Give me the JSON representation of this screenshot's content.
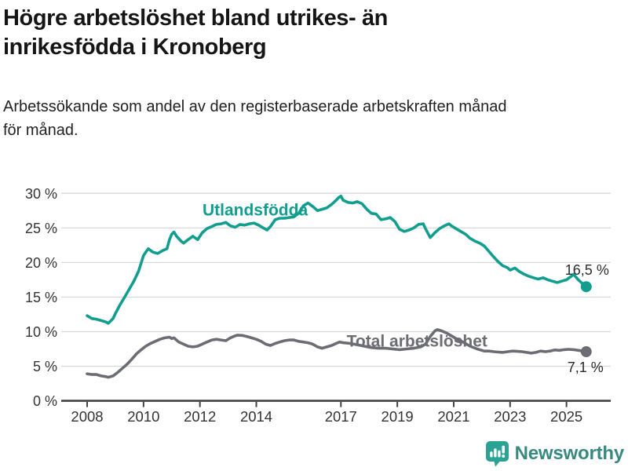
{
  "header": {
    "title": "Högre arbetslöshet bland utrikes- än\ninrikesfödda i Kronoberg",
    "subtitle": "Arbetssökande som andel av den registerbaserade arbetskraften månad\nför månad."
  },
  "footer": {
    "brand": "Newsworthy"
  },
  "colors": {
    "background": "#ffffff",
    "grid": "#d9d9d9",
    "axis": "#424242",
    "tick_text": "#333333",
    "annotation_text": "#2b2b2b",
    "series_teal": "#119e8f",
    "series_gray": "#6c6c74",
    "brand_teal": "#2ba294",
    "brand_text": "#398981"
  },
  "chart_data": {
    "type": "line",
    "title": "Högre arbetslöshet bland utrikes- än inrikesfödda i Kronoberg",
    "subtitle": "Arbetssökande som andel av den registerbaserade arbetskraften månad för månad.",
    "xlabel": "",
    "ylabel": "",
    "grid": true,
    "x_axis": {
      "unit": "year",
      "ticks": [
        {
          "value": 2008,
          "label": "2008"
        },
        {
          "value": 2010,
          "label": "2010"
        },
        {
          "value": 2012,
          "label": "2012"
        },
        {
          "value": 2014,
          "label": "2014"
        },
        {
          "value": 2017,
          "label": "2017"
        },
        {
          "value": 2019,
          "label": "2019"
        },
        {
          "value": 2021,
          "label": "2021"
        },
        {
          "value": 2023,
          "label": "2023"
        },
        {
          "value": 2025,
          "label": "2025"
        }
      ]
    },
    "y_axis": {
      "unit": "%",
      "ylim": [
        0,
        30
      ],
      "ticks": [
        {
          "value": 0,
          "label": "0 %"
        },
        {
          "value": 5,
          "label": "5 %"
        },
        {
          "value": 10,
          "label": "10 %"
        },
        {
          "value": 15,
          "label": "15 %"
        },
        {
          "value": 20,
          "label": "20 %"
        },
        {
          "value": 25,
          "label": "25 %"
        },
        {
          "value": 30,
          "label": "30 %"
        }
      ]
    },
    "series": [
      {
        "name": "Utlandsfödda",
        "color": "#119e8f",
        "label_anchor": {
          "t": 2013.96,
          "v": 27.6
        },
        "end_label": "16,5 %",
        "end_value": 16.5,
        "points": [
          [
            2008.0,
            12.3
          ],
          [
            2008.17,
            11.9
          ],
          [
            2008.33,
            11.8
          ],
          [
            2008.5,
            11.6
          ],
          [
            2008.67,
            11.4
          ],
          [
            2008.75,
            11.2
          ],
          [
            2008.92,
            11.9
          ],
          [
            2009.0,
            12.6
          ],
          [
            2009.17,
            13.9
          ],
          [
            2009.33,
            15.0
          ],
          [
            2009.5,
            16.2
          ],
          [
            2009.67,
            17.4
          ],
          [
            2009.83,
            18.8
          ],
          [
            2010.0,
            21.0
          ],
          [
            2010.08,
            21.5
          ],
          [
            2010.17,
            22.0
          ],
          [
            2010.33,
            21.5
          ],
          [
            2010.5,
            21.3
          ],
          [
            2010.67,
            21.7
          ],
          [
            2010.83,
            22.0
          ],
          [
            2010.92,
            23.3
          ],
          [
            2011.0,
            24.1
          ],
          [
            2011.08,
            24.4
          ],
          [
            2011.17,
            23.8
          ],
          [
            2011.33,
            23.1
          ],
          [
            2011.42,
            22.8
          ],
          [
            2011.58,
            23.3
          ],
          [
            2011.75,
            23.8
          ],
          [
            2011.92,
            23.3
          ],
          [
            2012.08,
            24.3
          ],
          [
            2012.25,
            24.9
          ],
          [
            2012.42,
            25.2
          ],
          [
            2012.58,
            25.5
          ],
          [
            2012.75,
            25.6
          ],
          [
            2012.92,
            25.8
          ],
          [
            2013.08,
            25.3
          ],
          [
            2013.25,
            25.1
          ],
          [
            2013.42,
            25.5
          ],
          [
            2013.58,
            25.4
          ],
          [
            2013.75,
            25.6
          ],
          [
            2013.92,
            25.7
          ],
          [
            2014.08,
            25.4
          ],
          [
            2014.25,
            25.0
          ],
          [
            2014.38,
            24.7
          ],
          [
            2014.5,
            25.2
          ],
          [
            2014.67,
            26.2
          ],
          [
            2014.83,
            26.4
          ],
          [
            2015.0,
            26.4
          ],
          [
            2015.17,
            26.5
          ],
          [
            2015.33,
            26.6
          ],
          [
            2015.5,
            27.1
          ],
          [
            2015.67,
            28.2
          ],
          [
            2015.83,
            28.6
          ],
          [
            2016.0,
            28.1
          ],
          [
            2016.17,
            27.5
          ],
          [
            2016.33,
            27.7
          ],
          [
            2016.5,
            27.9
          ],
          [
            2016.67,
            28.4
          ],
          [
            2016.83,
            29.0
          ],
          [
            2016.92,
            29.4
          ],
          [
            2017.0,
            29.6
          ],
          [
            2017.08,
            29.0
          ],
          [
            2017.25,
            28.7
          ],
          [
            2017.42,
            28.6
          ],
          [
            2017.58,
            28.8
          ],
          [
            2017.75,
            28.5
          ],
          [
            2017.92,
            27.7
          ],
          [
            2018.08,
            27.1
          ],
          [
            2018.25,
            27.0
          ],
          [
            2018.42,
            26.2
          ],
          [
            2018.58,
            26.3
          ],
          [
            2018.75,
            26.5
          ],
          [
            2018.92,
            25.9
          ],
          [
            2019.08,
            24.8
          ],
          [
            2019.25,
            24.5
          ],
          [
            2019.42,
            24.7
          ],
          [
            2019.58,
            25.0
          ],
          [
            2019.75,
            25.5
          ],
          [
            2019.92,
            25.6
          ],
          [
            2020.0,
            24.9
          ],
          [
            2020.17,
            23.6
          ],
          [
            2020.33,
            24.3
          ],
          [
            2020.5,
            24.9
          ],
          [
            2020.67,
            25.3
          ],
          [
            2020.83,
            25.6
          ],
          [
            2020.92,
            25.3
          ],
          [
            2021.08,
            24.9
          ],
          [
            2021.25,
            24.5
          ],
          [
            2021.42,
            24.1
          ],
          [
            2021.58,
            23.5
          ],
          [
            2021.75,
            23.1
          ],
          [
            2021.92,
            22.8
          ],
          [
            2022.08,
            22.4
          ],
          [
            2022.25,
            21.6
          ],
          [
            2022.42,
            20.8
          ],
          [
            2022.58,
            20.1
          ],
          [
            2022.75,
            19.5
          ],
          [
            2022.83,
            19.4
          ],
          [
            2022.92,
            19.2
          ],
          [
            2023.0,
            18.9
          ],
          [
            2023.17,
            19.2
          ],
          [
            2023.33,
            18.7
          ],
          [
            2023.5,
            18.3
          ],
          [
            2023.67,
            18.0
          ],
          [
            2023.83,
            17.8
          ],
          [
            2024.0,
            17.6
          ],
          [
            2024.17,
            17.8
          ],
          [
            2024.33,
            17.5
          ],
          [
            2024.5,
            17.3
          ],
          [
            2024.67,
            17.1
          ],
          [
            2024.83,
            17.3
          ],
          [
            2025.0,
            17.5
          ],
          [
            2025.17,
            18.0
          ],
          [
            2025.25,
            18.3
          ],
          [
            2025.42,
            17.5
          ],
          [
            2025.58,
            16.9
          ],
          [
            2025.7,
            16.5
          ]
        ]
      },
      {
        "name": "Total arbetslöshet",
        "color": "#6c6c74",
        "label_anchor": {
          "t": 2019.7,
          "v": 8.65
        },
        "end_label": "7,1 %",
        "end_value": 7.1,
        "points": [
          [
            2008.0,
            3.9
          ],
          [
            2008.17,
            3.8
          ],
          [
            2008.33,
            3.8
          ],
          [
            2008.5,
            3.6
          ],
          [
            2008.67,
            3.5
          ],
          [
            2008.75,
            3.4
          ],
          [
            2008.92,
            3.6
          ],
          [
            2009.08,
            4.1
          ],
          [
            2009.25,
            4.7
          ],
          [
            2009.42,
            5.3
          ],
          [
            2009.58,
            6.0
          ],
          [
            2009.75,
            6.8
          ],
          [
            2009.92,
            7.4
          ],
          [
            2010.08,
            7.9
          ],
          [
            2010.25,
            8.3
          ],
          [
            2010.42,
            8.6
          ],
          [
            2010.58,
            8.9
          ],
          [
            2010.75,
            9.1
          ],
          [
            2010.92,
            9.2
          ],
          [
            2011.0,
            9.0
          ],
          [
            2011.08,
            9.1
          ],
          [
            2011.25,
            8.5
          ],
          [
            2011.42,
            8.2
          ],
          [
            2011.58,
            7.9
          ],
          [
            2011.75,
            7.8
          ],
          [
            2011.92,
            7.9
          ],
          [
            2012.08,
            8.2
          ],
          [
            2012.25,
            8.5
          ],
          [
            2012.42,
            8.8
          ],
          [
            2012.58,
            8.9
          ],
          [
            2012.75,
            8.8
          ],
          [
            2012.92,
            8.7
          ],
          [
            2013.08,
            9.1
          ],
          [
            2013.25,
            9.4
          ],
          [
            2013.33,
            9.5
          ],
          [
            2013.5,
            9.45
          ],
          [
            2013.67,
            9.3
          ],
          [
            2013.83,
            9.1
          ],
          [
            2014.0,
            8.9
          ],
          [
            2014.17,
            8.6
          ],
          [
            2014.33,
            8.2
          ],
          [
            2014.5,
            8.0
          ],
          [
            2014.67,
            8.3
          ],
          [
            2014.83,
            8.5
          ],
          [
            2015.0,
            8.7
          ],
          [
            2015.17,
            8.8
          ],
          [
            2015.33,
            8.8
          ],
          [
            2015.5,
            8.6
          ],
          [
            2015.67,
            8.5
          ],
          [
            2015.83,
            8.4
          ],
          [
            2016.0,
            8.2
          ],
          [
            2016.17,
            7.8
          ],
          [
            2016.33,
            7.6
          ],
          [
            2016.5,
            7.8
          ],
          [
            2016.67,
            8.0
          ],
          [
            2016.83,
            8.3
          ],
          [
            2016.95,
            8.5
          ],
          [
            2017.08,
            8.4
          ],
          [
            2017.33,
            8.3
          ],
          [
            2017.58,
            8.1
          ],
          [
            2017.83,
            7.9
          ],
          [
            2018.08,
            7.7
          ],
          [
            2018.33,
            7.6
          ],
          [
            2018.58,
            7.6
          ],
          [
            2018.83,
            7.5
          ],
          [
            2019.08,
            7.4
          ],
          [
            2019.33,
            7.5
          ],
          [
            2019.58,
            7.6
          ],
          [
            2019.83,
            7.8
          ],
          [
            2020.0,
            8.2
          ],
          [
            2020.17,
            9.3
          ],
          [
            2020.33,
            10.1
          ],
          [
            2020.42,
            10.3
          ],
          [
            2020.58,
            10.1
          ],
          [
            2020.75,
            9.8
          ],
          [
            2020.92,
            9.4
          ],
          [
            2021.08,
            9.0
          ],
          [
            2021.33,
            8.5
          ],
          [
            2021.58,
            7.9
          ],
          [
            2021.83,
            7.5
          ],
          [
            2022.08,
            7.2
          ],
          [
            2022.25,
            7.2
          ],
          [
            2022.42,
            7.1
          ],
          [
            2022.58,
            7.05
          ],
          [
            2022.75,
            7.0
          ],
          [
            2022.92,
            7.1
          ],
          [
            2023.08,
            7.2
          ],
          [
            2023.25,
            7.15
          ],
          [
            2023.42,
            7.1
          ],
          [
            2023.58,
            7.0
          ],
          [
            2023.75,
            6.9
          ],
          [
            2023.92,
            7.0
          ],
          [
            2024.08,
            7.2
          ],
          [
            2024.25,
            7.1
          ],
          [
            2024.42,
            7.2
          ],
          [
            2024.58,
            7.35
          ],
          [
            2024.75,
            7.3
          ],
          [
            2024.92,
            7.4
          ],
          [
            2025.08,
            7.45
          ],
          [
            2025.25,
            7.4
          ],
          [
            2025.42,
            7.3
          ],
          [
            2025.58,
            7.2
          ],
          [
            2025.7,
            7.1
          ]
        ]
      }
    ]
  }
}
